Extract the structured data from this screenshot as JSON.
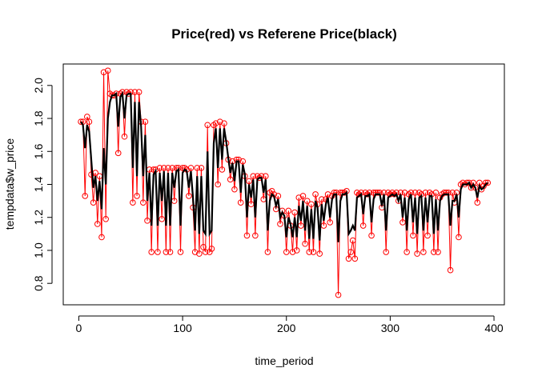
{
  "chart_data": {
    "type": "line",
    "title": "Price(red) vs Referene Price(black)",
    "x_label": "time_period",
    "y_label": "tempdata$w_price",
    "x": [
      2,
      4,
      6,
      8,
      10,
      12,
      14,
      16,
      18,
      20,
      22,
      24,
      26,
      28,
      30,
      32,
      34,
      36,
      38,
      40,
      42,
      44,
      46,
      48,
      50,
      52,
      54,
      56,
      58,
      60,
      62,
      64,
      66,
      68,
      70,
      72,
      74,
      76,
      78,
      80,
      82,
      84,
      86,
      88,
      90,
      92,
      94,
      96,
      98,
      100,
      102,
      104,
      106,
      108,
      110,
      112,
      114,
      116,
      118,
      120,
      122,
      124,
      126,
      128,
      130,
      132,
      134,
      136,
      138,
      140,
      142,
      144,
      146,
      148,
      150,
      152,
      154,
      156,
      158,
      160,
      162,
      164,
      166,
      168,
      170,
      172,
      174,
      176,
      178,
      180,
      182,
      184,
      186,
      188,
      190,
      192,
      194,
      196,
      198,
      200,
      202,
      204,
      206,
      208,
      210,
      212,
      214,
      216,
      218,
      220,
      222,
      224,
      226,
      228,
      230,
      232,
      234,
      236,
      238,
      240,
      242,
      244,
      246,
      248,
      250,
      252,
      254,
      256,
      258,
      260,
      262,
      264,
      266,
      268,
      270,
      272,
      274,
      276,
      278,
      280,
      282,
      284,
      286,
      288,
      290,
      292,
      294,
      296,
      298,
      300,
      302,
      304,
      306,
      308,
      310,
      312,
      314,
      316,
      318,
      320,
      322,
      324,
      326,
      328,
      330,
      332,
      334,
      336,
      338,
      340,
      342,
      344,
      346,
      348,
      350,
      352,
      354,
      356,
      358,
      360,
      362,
      364,
      366,
      368,
      370,
      372,
      374,
      376,
      378,
      380,
      382,
      384,
      386,
      388,
      390,
      392,
      394
    ],
    "series": [
      {
        "color": "#ff0000",
        "style": "points-lines",
        "values": [
          1.78,
          1.78,
          1.33,
          1.81,
          1.78,
          1.46,
          1.29,
          1.47,
          1.16,
          1.45,
          1.08,
          2.08,
          1.19,
          2.09,
          1.95,
          1.94,
          1.94,
          1.95,
          1.59,
          1.95,
          1.96,
          1.69,
          1.96,
          1.95,
          1.96,
          1.29,
          1.96,
          1.33,
          1.96,
          1.78,
          1.29,
          1.78,
          1.18,
          1.49,
          0.99,
          1.49,
          1.49,
          0.99,
          1.5,
          1.19,
          1.5,
          0.99,
          1.5,
          0.99,
          1.5,
          1.3,
          1.5,
          1.5,
          0.99,
          1.5,
          1.5,
          1.49,
          1.33,
          1.5,
          1.26,
          0.99,
          1.5,
          0.98,
          1.5,
          1.02,
          0.99,
          1.76,
          0.99,
          1.01,
          1.76,
          1.77,
          1.4,
          1.78,
          1.49,
          1.77,
          1.65,
          1.55,
          1.43,
          1.54,
          1.37,
          1.55,
          1.55,
          1.29,
          1.54,
          1.45,
          1.09,
          1.42,
          1.28,
          1.45,
          1.09,
          1.45,
          1.44,
          1.45,
          1.31,
          1.45,
          0.99,
          1.35,
          1.36,
          1.34,
          1.25,
          1.33,
          1.16,
          1.24,
          1.21,
          0.99,
          1.24,
          1.15,
          0.99,
          1.23,
          1.0,
          1.32,
          1.15,
          1.33,
          1.04,
          1.3,
          0.99,
          1.28,
          0.99,
          1.34,
          1.28,
          0.98,
          1.31,
          1.15,
          1.31,
          1.34,
          1.17,
          1.33,
          1.35,
          1.35,
          0.73,
          1.35,
          1.35,
          1.35,
          1.36,
          0.95,
          0.99,
          1.06,
          0.95,
          1.35,
          1.34,
          1.35,
          1.15,
          1.35,
          1.34,
          1.35,
          1.09,
          1.35,
          1.35,
          1.35,
          1.35,
          1.26,
          1.35,
          0.99,
          1.35,
          1.34,
          1.35,
          1.34,
          1.35,
          1.3,
          1.35,
          1.17,
          1.35,
          0.99,
          1.34,
          1.35,
          1.09,
          1.35,
          0.98,
          1.35,
          1.34,
          0.99,
          1.35,
          1.09,
          1.35,
          1.34,
          0.99,
          1.35,
          0.99,
          1.32,
          1.34,
          1.35,
          1.35,
          1.35,
          0.88,
          1.35,
          1.29,
          1.35,
          1.08,
          1.4,
          1.41,
          1.4,
          1.41,
          1.41,
          1.38,
          1.41,
          1.38,
          1.29,
          1.41,
          1.37,
          1.39,
          1.41,
          1.41
        ]
      },
      {
        "color": "#000000",
        "style": "line",
        "values": [
          1.78,
          1.76,
          1.62,
          1.76,
          1.72,
          1.55,
          1.38,
          1.45,
          1.3,
          1.42,
          1.25,
          1.62,
          1.4,
          1.8,
          1.9,
          1.94,
          1.94,
          1.95,
          1.75,
          1.93,
          1.95,
          1.8,
          1.94,
          1.95,
          1.95,
          1.5,
          1.9,
          1.45,
          1.9,
          1.75,
          1.45,
          1.7,
          1.3,
          1.47,
          1.15,
          1.46,
          1.48,
          1.15,
          1.47,
          1.3,
          1.48,
          1.15,
          1.47,
          1.15,
          1.47,
          1.38,
          1.48,
          1.49,
          1.15,
          1.47,
          1.49,
          1.48,
          1.38,
          1.48,
          1.32,
          1.12,
          1.45,
          1.1,
          1.45,
          1.12,
          1.1,
          1.6,
          1.1,
          1.12,
          1.65,
          1.74,
          1.5,
          1.74,
          1.55,
          1.74,
          1.66,
          1.56,
          1.47,
          1.53,
          1.42,
          1.54,
          1.54,
          1.35,
          1.52,
          1.46,
          1.2,
          1.4,
          1.32,
          1.43,
          1.2,
          1.43,
          1.44,
          1.44,
          1.35,
          1.43,
          1.12,
          1.3,
          1.34,
          1.33,
          1.27,
          1.31,
          1.2,
          1.23,
          1.21,
          1.08,
          1.2,
          1.16,
          1.08,
          1.2,
          1.08,
          1.27,
          1.18,
          1.3,
          1.12,
          1.27,
          1.07,
          1.25,
          1.07,
          1.3,
          1.26,
          1.06,
          1.28,
          1.18,
          1.28,
          1.32,
          1.2,
          1.31,
          1.34,
          1.34,
          1.05,
          1.3,
          1.34,
          1.34,
          1.35,
          1.1,
          1.12,
          1.15,
          1.12,
          1.32,
          1.33,
          1.34,
          1.22,
          1.33,
          1.33,
          1.34,
          1.17,
          1.31,
          1.34,
          1.34,
          1.34,
          1.27,
          1.34,
          1.12,
          1.32,
          1.33,
          1.34,
          1.33,
          1.34,
          1.3,
          1.34,
          1.2,
          1.32,
          1.12,
          1.31,
          1.34,
          1.17,
          1.32,
          1.1,
          1.32,
          1.33,
          1.12,
          1.32,
          1.17,
          1.33,
          1.33,
          1.1,
          1.31,
          1.12,
          1.3,
          1.33,
          1.34,
          1.34,
          1.34,
          1.15,
          1.3,
          1.3,
          1.34,
          1.2,
          1.37,
          1.4,
          1.4,
          1.4,
          1.41,
          1.38,
          1.4,
          1.38,
          1.32,
          1.39,
          1.37,
          1.38,
          1.4,
          1.41
        ]
      }
    ],
    "xlim": [
      -15,
      410
    ],
    "ylim": [
      0.67,
      2.13
    ],
    "xticks": [
      0,
      100,
      200,
      300,
      400
    ],
    "yticks": [
      0.8,
      {
        "value": 1,
        "label": "1.0"
      },
      1.2,
      1.4,
      1.6,
      1.8,
      {
        "value": 2,
        "label": "2.0"
      }
    ]
  }
}
